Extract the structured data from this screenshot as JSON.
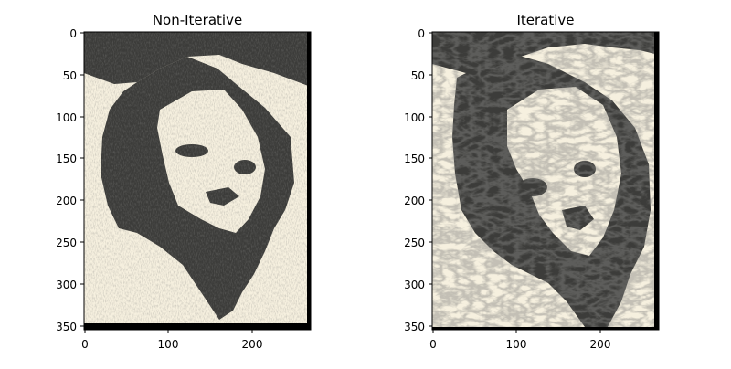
{
  "panels": [
    {
      "title": "Non-Iterative",
      "xticks": [
        "0",
        "100",
        "200"
      ],
      "yticks": [
        "0",
        "50",
        "100",
        "150",
        "200",
        "250",
        "300",
        "350"
      ]
    },
    {
      "title": "Iterative",
      "xticks": [
        "0",
        "100",
        "200"
      ],
      "yticks": [
        "0",
        "50",
        "100",
        "150",
        "200",
        "250",
        "300",
        "350"
      ]
    }
  ],
  "colors": {
    "ink": "#3c3c3a",
    "paper": "#f6f0df",
    "border": "#000000"
  }
}
